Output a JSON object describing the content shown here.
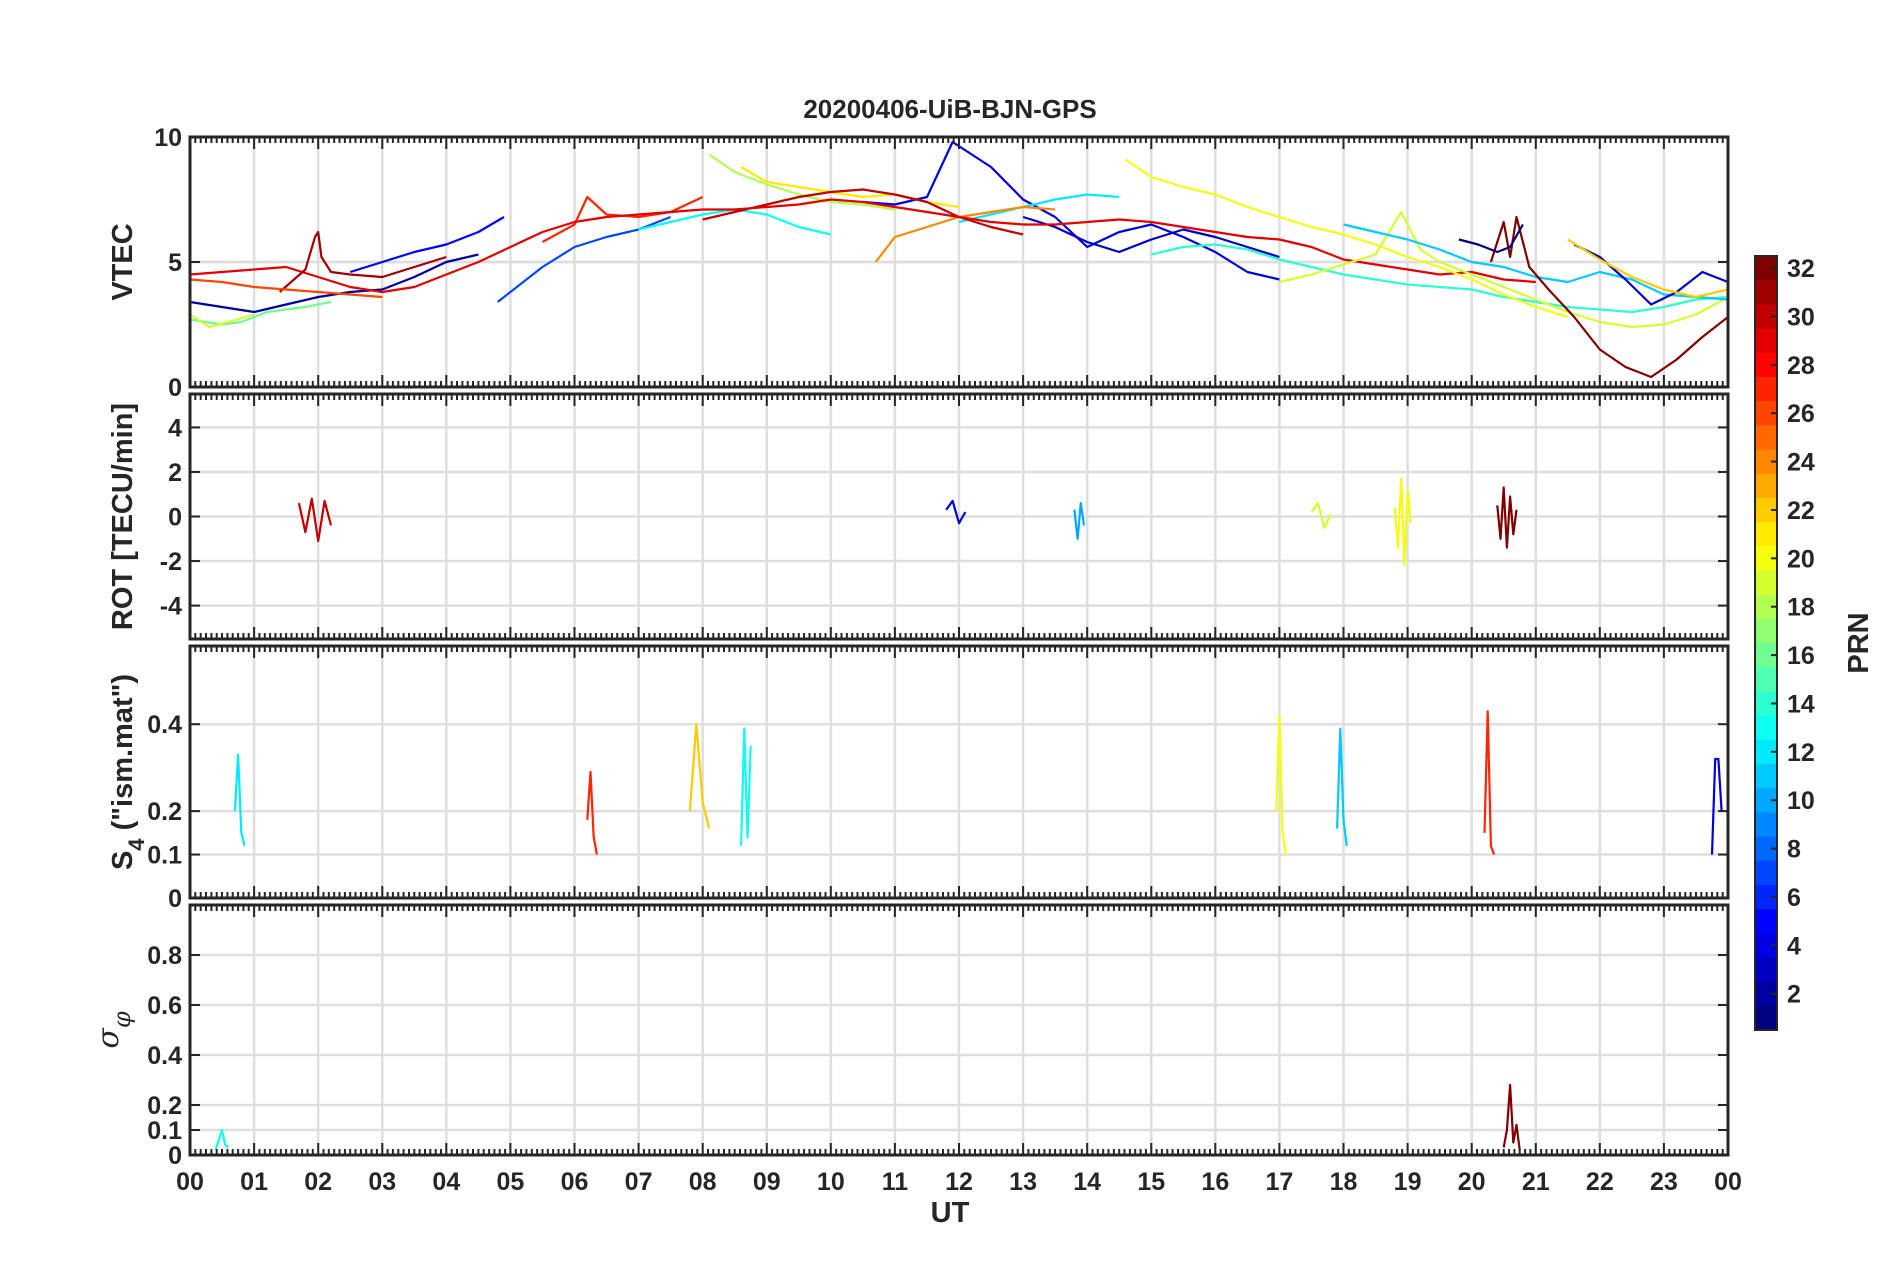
{
  "chart_data": {
    "type": "line",
    "title": "20200406-UiB-BJN-GPS",
    "xlabel": "UT",
    "x_ticks": [
      "00",
      "01",
      "02",
      "03",
      "04",
      "05",
      "06",
      "07",
      "08",
      "09",
      "10",
      "11",
      "12",
      "13",
      "14",
      "15",
      "16",
      "17",
      "18",
      "19",
      "20",
      "21",
      "22",
      "23",
      "00"
    ],
    "xlim": [
      0,
      24
    ],
    "grid": true,
    "colorbar": {
      "label": "PRN",
      "colormap": "jet",
      "range": [
        1,
        32
      ],
      "ticks": [
        "2",
        "4",
        "6",
        "8",
        "10",
        "12",
        "14",
        "16",
        "18",
        "20",
        "22",
        "24",
        "26",
        "28",
        "30",
        "32"
      ]
    },
    "panels": [
      {
        "ylabel": "VTEC",
        "ylim": [
          0,
          10
        ],
        "yticks": [
          "0",
          "5",
          "10"
        ],
        "series": [
          {
            "prn": 2,
            "x": [
              0,
              0.5,
              1,
              1.5,
              2,
              2.5,
              3,
              3.5,
              4,
              4.5
            ],
            "y": [
              3.4,
              3.2,
              3.0,
              3.3,
              3.6,
              3.8,
              3.9,
              4.4,
              5.0,
              5.3
            ]
          },
          {
            "prn": 5,
            "x": [
              2.5,
              3,
              3.5,
              4,
              4.5,
              4.9
            ],
            "y": [
              4.6,
              5.0,
              5.4,
              5.7,
              6.2,
              6.8
            ]
          },
          {
            "prn": 7,
            "x": [
              4.8,
              5.5,
              6,
              6.5,
              7,
              7.5
            ],
            "y": [
              3.4,
              4.8,
              5.6,
              6.0,
              6.3,
              6.8
            ]
          },
          {
            "prn": 4,
            "x": [
              10.5,
              11,
              11.5,
              11.9,
              12.5,
              13,
              13.5,
              14,
              14.5,
              15,
              15.5,
              16,
              16.5,
              17
            ],
            "y": [
              7.4,
              7.3,
              7.6,
              9.8,
              8.8,
              7.5,
              6.8,
              5.6,
              6.2,
              6.5,
              6.0,
              5.4,
              4.6,
              4.3
            ]
          },
          {
            "prn": 12,
            "x": [
              12,
              12.5,
              13,
              13.5,
              14,
              14.5
            ],
            "y": [
              6.6,
              6.9,
              7.2,
              7.5,
              7.7,
              7.6
            ]
          },
          {
            "prn": 3,
            "x": [
              13,
              13.5,
              14,
              14.5,
              15,
              15.5,
              16,
              16.5,
              17
            ],
            "y": [
              6.8,
              6.4,
              5.8,
              5.4,
              5.9,
              6.3,
              6.0,
              5.6,
              5.2
            ]
          },
          {
            "prn": 18,
            "x": [
              8.1,
              8.5,
              9,
              9.5,
              10,
              10.5,
              11
            ],
            "y": [
              9.3,
              8.6,
              8.1,
              7.7,
              7.4,
              7.3,
              7.1
            ]
          },
          {
            "prn": 21,
            "x": [
              8.6,
              9,
              9.5,
              10,
              10.5,
              11,
              11.5,
              12
            ],
            "y": [
              8.8,
              8.2,
              8.0,
              7.8,
              7.6,
              7.7,
              7.4,
              7.2
            ]
          },
          {
            "prn": 13,
            "x": [
              7,
              7.5,
              8,
              8.5,
              9,
              9.5,
              10
            ],
            "y": [
              6.3,
              6.6,
              6.9,
              7.1,
              6.9,
              6.4,
              6.1
            ]
          },
          {
            "prn": 30,
            "x": [
              8,
              8.5,
              9,
              9.5,
              10,
              10.5,
              11,
              11.5,
              12,
              12.5,
              13
            ],
            "y": [
              6.7,
              7.0,
              7.3,
              7.6,
              7.8,
              7.9,
              7.7,
              7.4,
              6.8,
              6.4,
              6.1
            ]
          },
          {
            "prn": 24,
            "x": [
              10.7,
              11,
              11.5,
              12,
              12.5,
              13,
              13.5
            ],
            "y": [
              5.0,
              6.0,
              6.4,
              6.8,
              7.0,
              7.2,
              7.1
            ]
          },
          {
            "prn": 27,
            "x": [
              5.5,
              6,
              6.2,
              6.5,
              7,
              7.5,
              8
            ],
            "y": [
              5.8,
              6.5,
              7.6,
              6.9,
              6.8,
              7.0,
              7.6
            ]
          },
          {
            "prn": 29,
            "x": [
              0,
              0.5,
              1,
              1.5,
              2,
              2.5,
              3,
              3.5,
              4,
              4.5,
              5,
              5.5,
              6,
              6.5,
              7,
              7.5,
              8,
              8.5,
              9,
              9.5,
              10,
              10.5,
              11,
              11.5,
              12,
              12.5,
              13,
              13.5,
              14,
              14.5,
              15,
              15.5,
              16,
              16.5,
              17,
              17.5,
              18,
              18.5,
              19,
              19.5,
              20,
              20.5,
              21
            ],
            "y": [
              4.5,
              4.6,
              4.7,
              4.8,
              4.4,
              4.0,
              3.8,
              4.0,
              4.5,
              5.0,
              5.6,
              6.2,
              6.6,
              6.8,
              6.9,
              7.0,
              7.1,
              7.1,
              7.2,
              7.3,
              7.5,
              7.4,
              7.2,
              7.0,
              6.8,
              6.6,
              6.5,
              6.5,
              6.6,
              6.7,
              6.6,
              6.4,
              6.2,
              6.0,
              5.9,
              5.6,
              5.1,
              4.9,
              4.7,
              4.5,
              4.6,
              4.3,
              4.2
            ]
          },
          {
            "prn": 31,
            "x": [
              1.4,
              1.8,
              1.95,
              2.0,
              2.05,
              2.2,
              2.5,
              3.0,
              3.5,
              4.0
            ],
            "y": [
              3.8,
              4.7,
              6.0,
              6.2,
              5.2,
              4.6,
              4.5,
              4.4,
              4.8,
              5.2
            ]
          },
          {
            "prn": 14,
            "x": [
              15,
              15.5,
              16,
              16.5,
              17,
              17.5,
              18,
              18.5,
              19,
              19.5,
              20,
              20.5,
              21,
              21.5,
              22,
              22.5,
              23,
              23.5,
              24
            ],
            "y": [
              5.3,
              5.6,
              5.7,
              5.5,
              5.1,
              4.8,
              4.5,
              4.3,
              4.1,
              4.0,
              3.9,
              3.6,
              3.4,
              3.2,
              3.1,
              3.0,
              3.2,
              3.5,
              3.6
            ]
          },
          {
            "prn": 20,
            "x": [
              14.6,
              15,
              15.5,
              16,
              16.5,
              17,
              17.5,
              18,
              18.5,
              19,
              19.5,
              20,
              20.5,
              21,
              21.5
            ],
            "y": [
              9.1,
              8.4,
              8.0,
              7.7,
              7.2,
              6.8,
              6.4,
              6.1,
              5.7,
              5.2,
              4.8,
              4.3,
              3.7,
              3.2,
              2.8
            ]
          },
          {
            "prn": 19,
            "x": [
              17,
              17.5,
              18,
              18.5,
              18.9,
              19.2,
              19.5,
              20,
              20.5,
              21,
              21.5,
              22,
              22.5,
              23,
              23.5,
              24
            ],
            "y": [
              4.2,
              4.5,
              4.9,
              5.3,
              7.0,
              5.5,
              5.0,
              4.5,
              4.0,
              3.5,
              3.0,
              2.6,
              2.4,
              2.5,
              2.9,
              3.6
            ]
          },
          {
            "prn": 11,
            "x": [
              18,
              18.5,
              19,
              19.5,
              20,
              20.5,
              21,
              21.5,
              22,
              22.5,
              23,
              23.5,
              24
            ],
            "y": [
              6.5,
              6.2,
              5.9,
              5.5,
              5.0,
              4.8,
              4.4,
              4.2,
              4.6,
              4.3,
              3.7,
              3.6,
              3.5
            ]
          },
          {
            "prn": 32,
            "x": [
              20.3,
              20.5,
              20.6,
              20.7,
              20.9,
              21.2,
              21.6,
              22,
              22.4,
              22.8,
              23.2,
              23.6,
              24
            ],
            "y": [
              5.0,
              6.6,
              5.2,
              6.8,
              4.8,
              3.9,
              2.8,
              1.5,
              0.8,
              0.4,
              1.1,
              2.0,
              2.8
            ]
          },
          {
            "prn": 1,
            "x": [
              19.8,
              20.1,
              20.4,
              20.6,
              20.8
            ],
            "y": [
              5.9,
              5.7,
              5.4,
              5.6,
              6.5
            ]
          },
          {
            "prn": 3,
            "x": [
              21.6,
              22,
              22.4,
              22.8,
              23.2,
              23.6,
              24
            ],
            "y": [
              5.7,
              5.2,
              4.3,
              3.3,
              3.8,
              4.6,
              4.2
            ]
          },
          {
            "prn": 22,
            "x": [
              21.5,
              22,
              22.5,
              23,
              23.5,
              24
            ],
            "y": [
              5.9,
              5.1,
              4.4,
              3.9,
              3.6,
              3.9
            ]
          },
          {
            "prn": 16,
            "x": [
              0,
              0.5,
              0.8,
              1.2,
              1.8,
              2.2
            ],
            "y": [
              2.7,
              2.5,
              2.6,
              3.0,
              3.2,
              3.4
            ]
          },
          {
            "prn": 19,
            "x": [
              0,
              0.3,
              0.6,
              1.0
            ],
            "y": [
              2.9,
              2.4,
              2.6,
              2.9
            ]
          },
          {
            "prn": 26,
            "x": [
              0,
              0.5,
              1,
              1.5,
              2,
              2.5,
              3
            ],
            "y": [
              4.3,
              4.2,
              4.0,
              3.9,
              3.8,
              3.7,
              3.6
            ]
          }
        ]
      },
      {
        "ylabel": "ROT [TECU/min]",
        "ylim": [
          -5.5,
          5.5
        ],
        "yticks": [
          "4",
          "2",
          "0",
          "-2",
          "-4"
        ],
        "series": [
          {
            "prn": 20,
            "x": [
              18.8,
              18.85,
              18.9,
              18.95,
              19.0,
              19.05
            ],
            "y": [
              0.4,
              -1.4,
              1.7,
              -2.2,
              1.2,
              -0.3
            ]
          },
          {
            "prn": 32,
            "x": [
              20.4,
              20.45,
              20.5,
              20.55,
              20.6,
              20.65,
              20.7
            ],
            "y": [
              0.5,
              -1.0,
              1.3,
              -1.4,
              0.9,
              -0.8,
              0.3
            ]
          },
          {
            "prn": 30,
            "x": [
              1.7,
              1.8,
              1.9,
              2.0,
              2.1,
              2.2
            ],
            "y": [
              0.6,
              -0.7,
              0.8,
              -1.1,
              0.7,
              -0.4
            ]
          },
          {
            "prn": 4,
            "x": [
              11.8,
              11.9,
              12.0,
              12.1
            ],
            "y": [
              0.3,
              0.7,
              -0.3,
              0.2
            ]
          },
          {
            "prn": 10,
            "x": [
              13.8,
              13.85,
              13.9,
              13.95
            ],
            "y": [
              0.3,
              -1.0,
              0.6,
              -0.4
            ]
          },
          {
            "prn": 19,
            "x": [
              17.5,
              17.6,
              17.7,
              17.8
            ],
            "y": [
              0.2,
              0.6,
              -0.5,
              0.1
            ]
          }
        ]
      },
      {
        "ylabel": "S4 (\"ism.mat\")",
        "ylim": [
          0,
          0.58
        ],
        "yticks": [
          "0.4",
          "0.2",
          "0.1",
          "0"
        ],
        "series": [
          {
            "prn": 22,
            "x": [
              7.8,
              7.9,
              8.0,
              8.1
            ],
            "y": [
              0.2,
              0.4,
              0.22,
              0.16
            ]
          },
          {
            "prn": 13,
            "x": [
              8.6,
              8.65,
              8.7,
              8.75
            ],
            "y": [
              0.12,
              0.39,
              0.14,
              0.35
            ]
          },
          {
            "prn": 20,
            "x": [
              16.95,
              17.0,
              17.05,
              17.1
            ],
            "y": [
              0.2,
              0.42,
              0.15,
              0.1
            ]
          },
          {
            "prn": 11,
            "x": [
              17.9,
              17.95,
              18.0,
              18.05
            ],
            "y": [
              0.16,
              0.39,
              0.18,
              0.12
            ]
          },
          {
            "prn": 27,
            "x": [
              20.2,
              20.25,
              20.3,
              20.35
            ],
            "y": [
              0.15,
              0.43,
              0.12,
              0.1
            ]
          },
          {
            "prn": 4,
            "x": [
              23.75,
              23.8,
              23.85,
              23.9
            ],
            "y": [
              0.1,
              0.32,
              0.32,
              0.2
            ]
          },
          {
            "prn": 12,
            "x": [
              0.7,
              0.75,
              0.8,
              0.85
            ],
            "y": [
              0.2,
              0.33,
              0.15,
              0.12
            ]
          },
          {
            "prn": 27,
            "x": [
              6.2,
              6.25,
              6.3,
              6.35
            ],
            "y": [
              0.18,
              0.29,
              0.14,
              0.1
            ]
          }
        ]
      },
      {
        "ylabel": "σφ",
        "ylim": [
          0,
          1
        ],
        "yticks": [
          "0.8",
          "0.6",
          "0.4",
          "0.2",
          "0.1",
          "0"
        ],
        "series": [
          {
            "prn": 32,
            "x": [
              20.5,
              20.55,
              20.6,
              20.65,
              20.7,
              20.75
            ],
            "y": [
              0.03,
              0.1,
              0.28,
              0.05,
              0.12,
              0.02
            ]
          },
          {
            "prn": 13,
            "x": [
              0.4,
              0.5,
              0.55,
              0.6
            ],
            "y": [
              0.02,
              0.1,
              0.04,
              0.03
            ]
          }
        ]
      }
    ]
  }
}
